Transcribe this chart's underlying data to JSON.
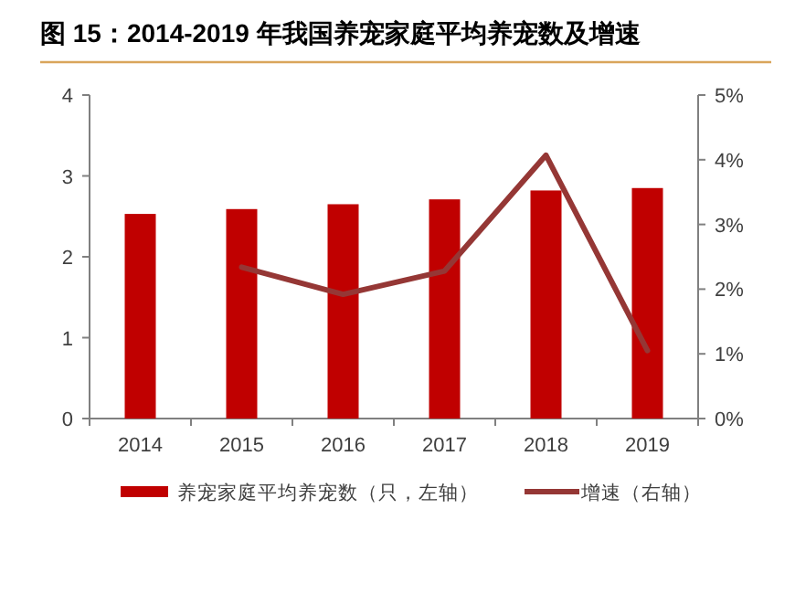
{
  "chart_data": {
    "type": "bar",
    "title": "图 15：2014-2019 年我国养宠家庭平均养宠数及增速",
    "categories": [
      "2014",
      "2015",
      "2016",
      "2017",
      "2018",
      "2019"
    ],
    "series": [
      {
        "name": "养宠家庭平均养宠数（只，左轴）",
        "color": "#c00000",
        "values": [
          2.53,
          2.59,
          2.65,
          2.71,
          2.82,
          2.85
        ]
      },
      {
        "name": "增速（右轴）",
        "type": "line",
        "axis": "y2",
        "color": "#953735",
        "values": [
          null,
          2.34,
          1.92,
          2.28,
          4.07,
          1.05
        ]
      }
    ],
    "ylim": [
      0,
      4
    ],
    "yticks": [
      0,
      1,
      2,
      3,
      4
    ],
    "y2lim": [
      0,
      5
    ],
    "y2ticks": [
      {
        "value": 0,
        "label": "0%"
      },
      {
        "value": 1,
        "label": "1%"
      },
      {
        "value": 2,
        "label": "2%"
      },
      {
        "value": 3,
        "label": "3%"
      },
      {
        "value": 4,
        "label": "4%"
      },
      {
        "value": 5,
        "label": "5%"
      }
    ],
    "legend": "bottom"
  }
}
